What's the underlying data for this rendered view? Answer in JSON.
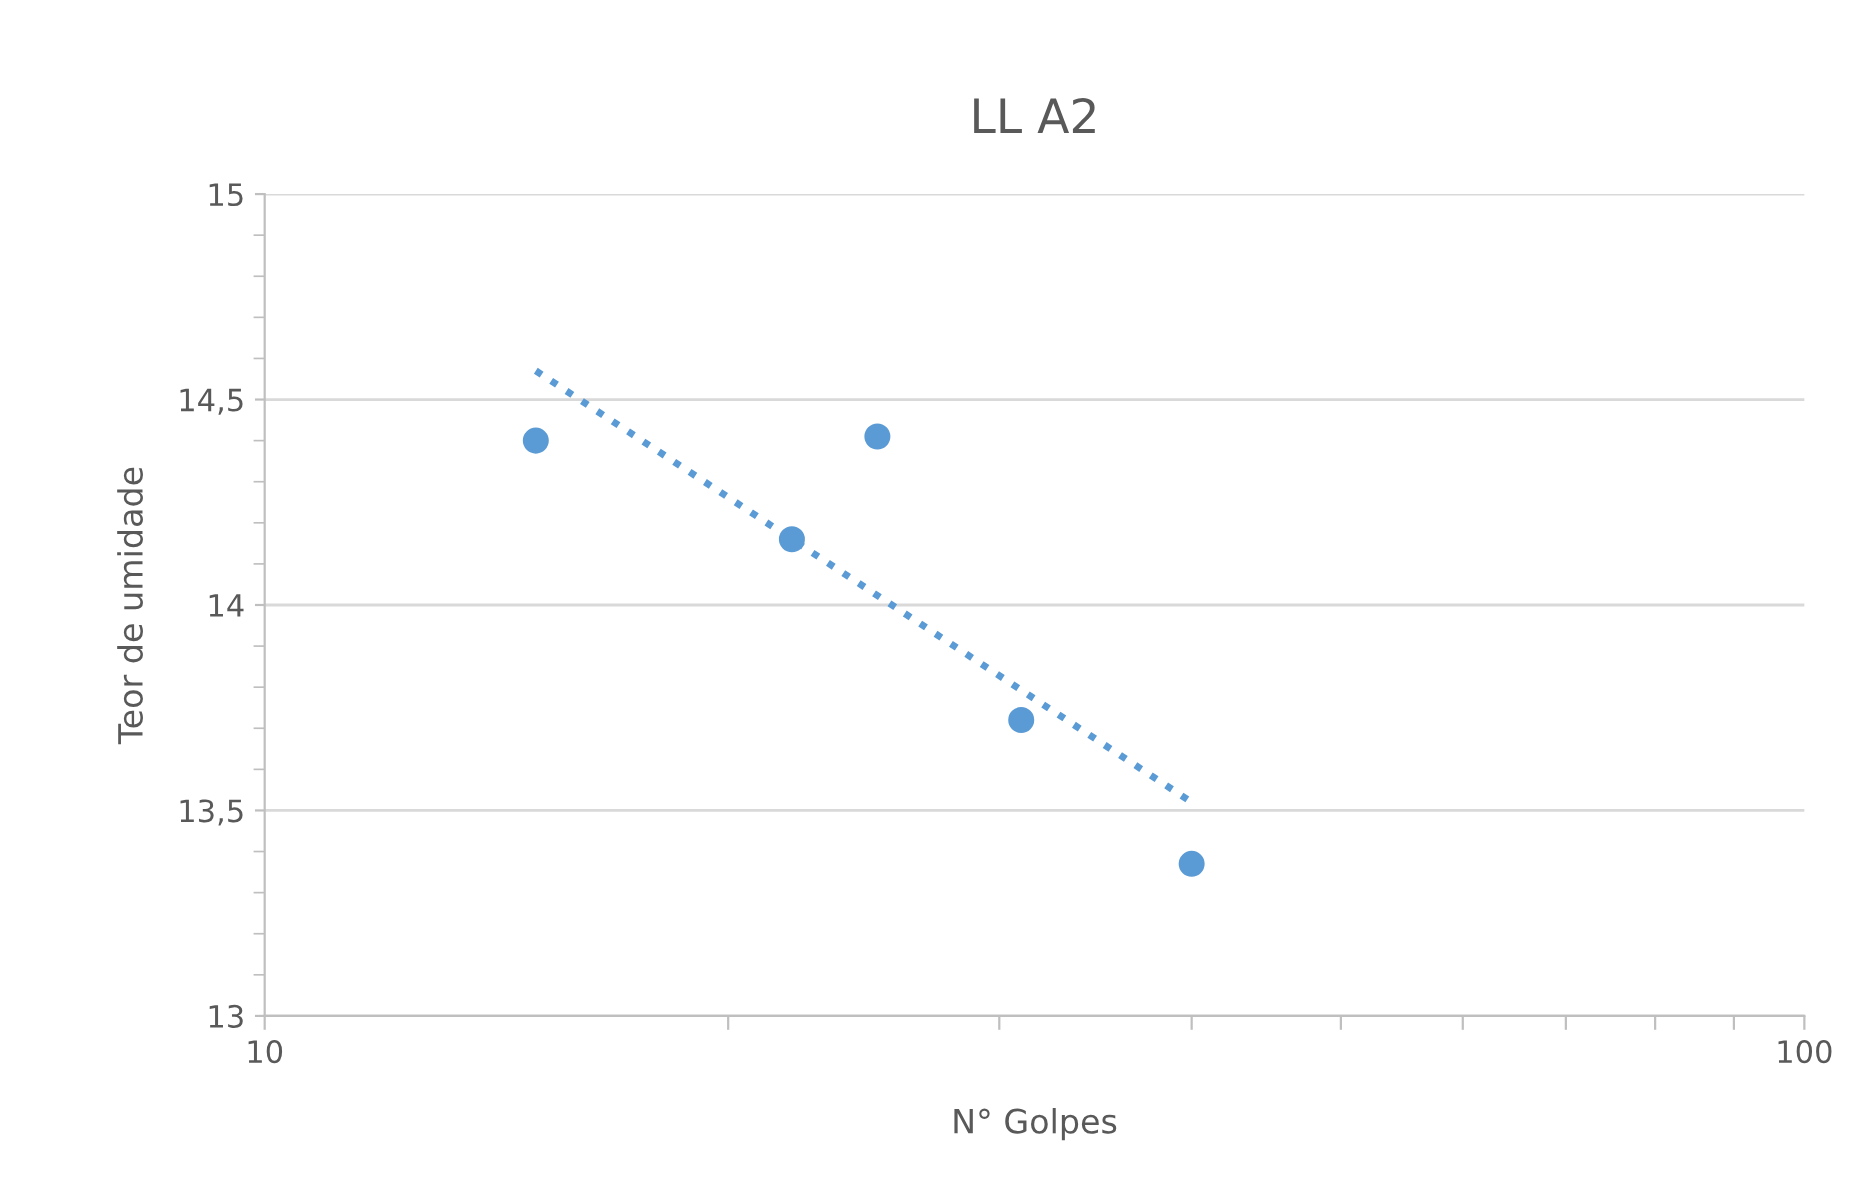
{
  "chart_data": {
    "type": "scatter",
    "title": "LL A2",
    "xlabel": "N° Golpes",
    "ylabel": "Teor de umidade",
    "log": "x",
    "xlim": [
      10,
      100
    ],
    "ylim": [
      13,
      15
    ],
    "xticks": [
      10,
      {
        "value": 20,
        "label": null
      },
      {
        "value": 30,
        "label": null
      },
      {
        "value": 40,
        "label": null
      },
      {
        "value": 50,
        "label": null
      },
      {
        "value": 60,
        "label": null
      },
      {
        "value": 70,
        "label": null
      },
      {
        "value": 80,
        "label": null
      },
      {
        "value": 90,
        "label": null
      },
      100
    ],
    "yticks": [
      13,
      {
        "value": 13.5,
        "label": "13,5"
      },
      14,
      {
        "value": 14.5,
        "label": "14,5"
      },
      15
    ],
    "grid": "y",
    "series": [
      {
        "color": "#5b9bd5",
        "marker": "circle",
        "x": [
          15,
          22,
          25,
          31,
          40
        ],
        "values": [
          14.4,
          14.16,
          14.41,
          13.72,
          13.37
        ]
      },
      {
        "type": "line",
        "color": "#5b9bd5",
        "line_style": "dotted",
        "marker": "none",
        "x": [
          15,
          40
        ],
        "values": [
          14.57,
          13.52
        ]
      }
    ]
  }
}
